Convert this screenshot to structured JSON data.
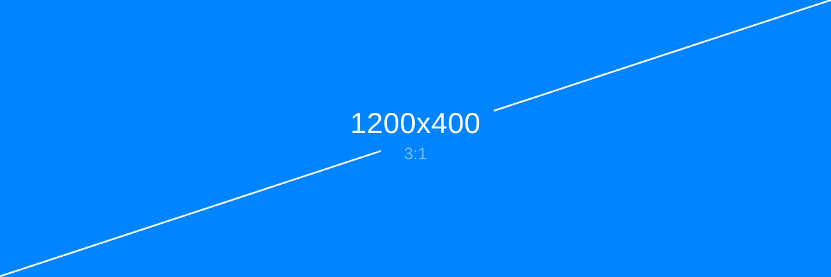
{
  "placeholder": {
    "dimensions_label": "1200x400",
    "ratio_label": "3:1"
  },
  "colors": {
    "background": "#0084FF",
    "line": "#FFFFFF",
    "dimensions_text": "#FFFFFF",
    "ratio_text": "#7FBEF7"
  }
}
